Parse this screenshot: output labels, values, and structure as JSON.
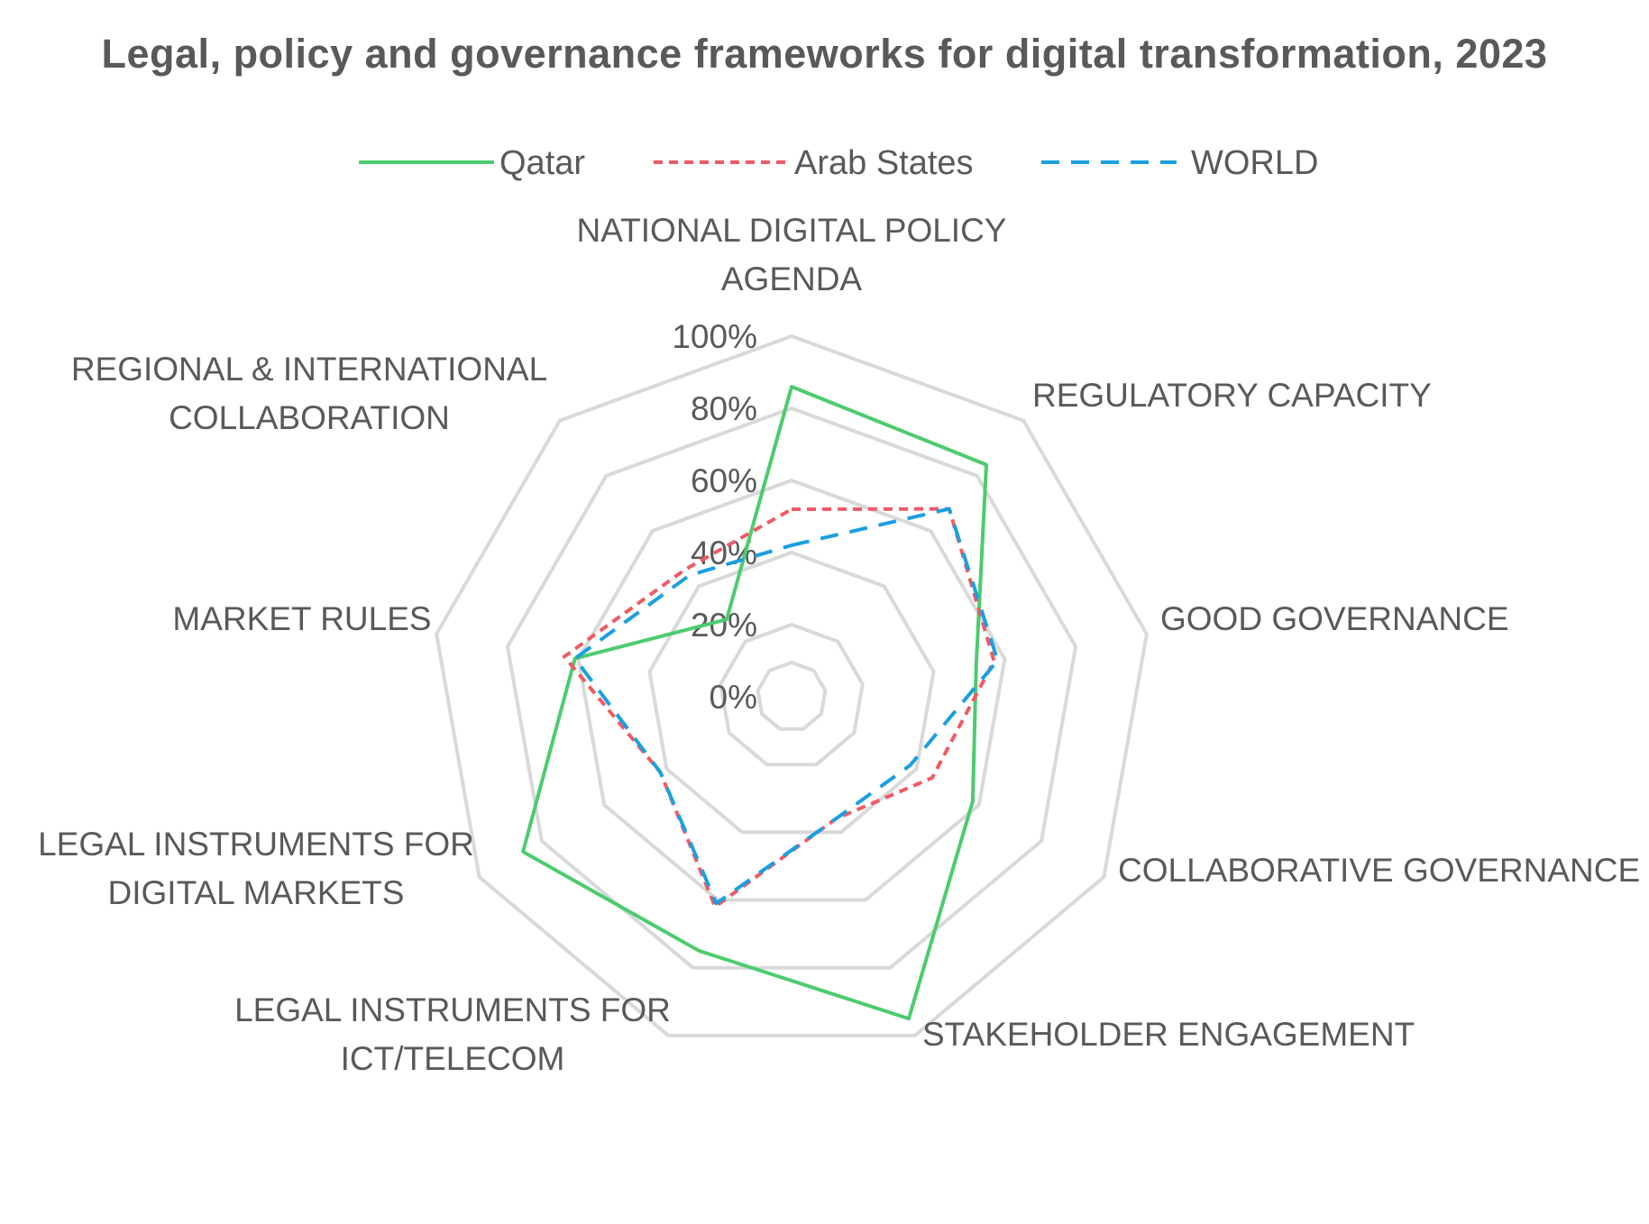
{
  "chart_data": {
    "type": "radar",
    "title": "Legal, policy and governance frameworks for digital transformation,  2023",
    "axes": [
      [
        "NATIONAL DIGITAL POLICY",
        "AGENDA"
      ],
      [
        "REGULATORY CAPACITY"
      ],
      [
        "GOOD GOVERNANCE"
      ],
      [
        "COLLABORATIVE GOVERNANCE"
      ],
      [
        "STAKEHOLDER ENGAGEMENT"
      ],
      [
        "LEGAL INSTRUMENTS FOR",
        "ICT/TELECOM"
      ],
      [
        "LEGAL INSTRUMENTS FOR",
        "DIGITAL MARKETS"
      ],
      [
        "MARKET RULES"
      ],
      [
        "REGIONAL & INTERNATIONAL",
        "COLLABORATION"
      ]
    ],
    "tick_labels": [
      "0%",
      "20%",
      "40%",
      "60%",
      "80%",
      "100%"
    ],
    "range": [
      0,
      100
    ],
    "series": [
      {
        "name": "Qatar",
        "values": [
          86,
          84,
          52,
          58,
          95,
          75,
          86,
          61,
          28
        ],
        "color": "#4dcb6e",
        "dash": "solid"
      },
      {
        "name": "Arab States",
        "values": [
          52,
          68,
          57,
          45,
          36,
          62,
          42,
          64,
          46
        ],
        "color": "#f05a63",
        "dash": "short-dash"
      },
      {
        "name": "WORLD",
        "values": [
          42,
          68,
          58,
          38,
          36,
          61,
          42,
          61,
          44
        ],
        "color": "#1a9fe0",
        "dash": "long-dash"
      }
    ],
    "legend_position": "top",
    "grid": true
  }
}
